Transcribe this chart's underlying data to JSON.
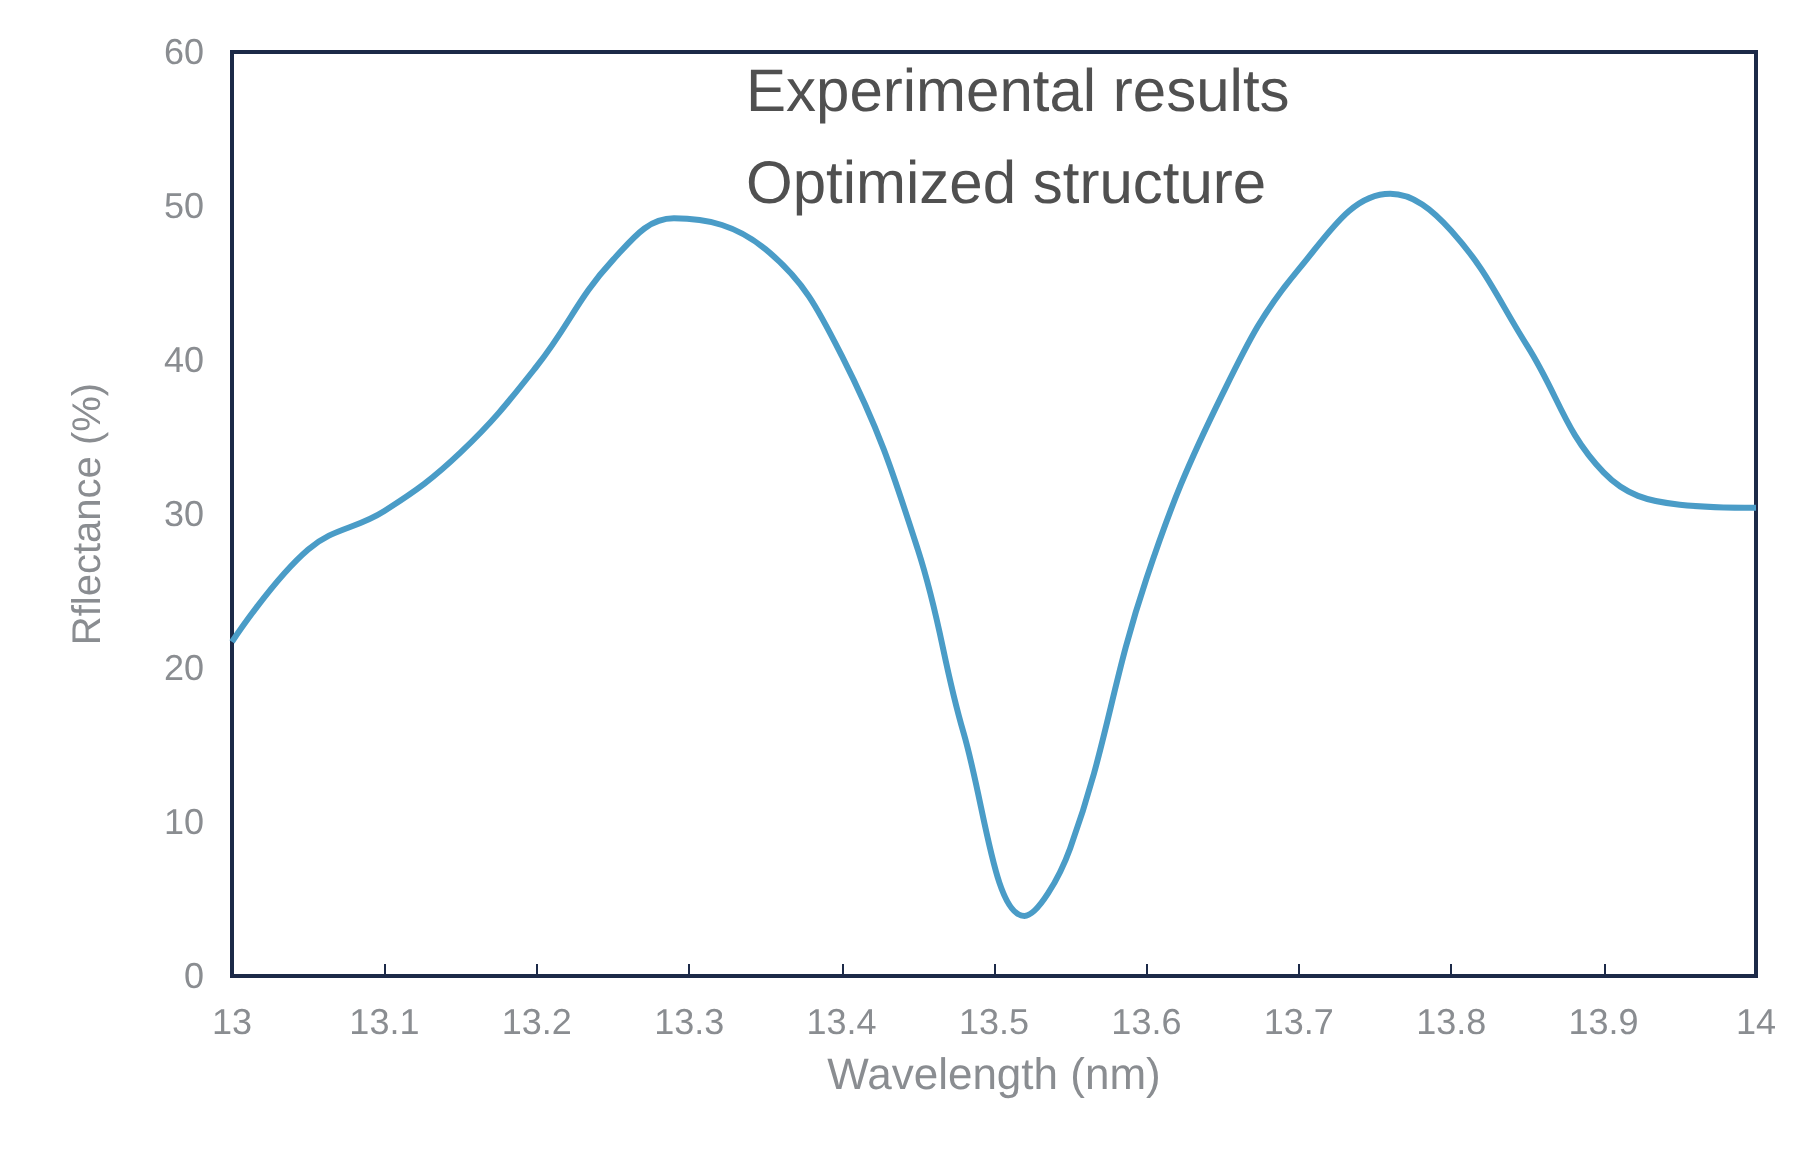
{
  "chart_data": {
    "type": "line",
    "xlabel": "Wavelength (nm)",
    "ylabel": "Rflectance (%)",
    "annotations": [
      "Experimental results",
      "Optimized structure"
    ],
    "xlim": [
      13,
      14
    ],
    "ylim": [
      0,
      60
    ],
    "xticks": [
      13,
      13.1,
      13.2,
      13.3,
      13.4,
      13.5,
      13.6,
      13.7,
      13.8,
      13.9,
      14
    ],
    "yticks": [
      0,
      10,
      20,
      30,
      40,
      50,
      60
    ],
    "grid": false,
    "marker": "none",
    "line_style": "solid",
    "series": [
      {
        "color": "#4a9cc7",
        "x": [
          13,
          13.05,
          13.1,
          13.15,
          13.2,
          13.25,
          13.29,
          13.35,
          13.4,
          13.45,
          13.48,
          13.52,
          13.55,
          13.6,
          13.65,
          13.7,
          13.76,
          13.8,
          13.85,
          13.9,
          13.95,
          14
        ],
        "values": [
          21.7,
          27.7,
          30.2,
          34,
          39.6,
          46.5,
          49.2,
          47.2,
          40.3,
          27.7,
          15.8,
          3.9,
          8.3,
          25.8,
          37.8,
          45.9,
          50.8,
          48.4,
          40.9,
          32.7,
          30.6,
          30.4
        ]
      }
    ]
  }
}
